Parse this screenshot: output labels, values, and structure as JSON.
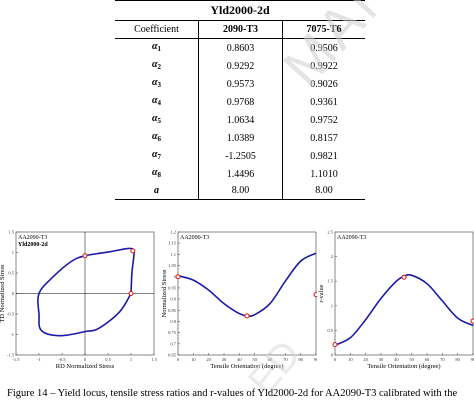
{
  "table": {
    "title": "Yld2000-2d",
    "header": [
      "Coefficient",
      "2090-T3",
      "7075-T6"
    ],
    "rows": [
      {
        "sym": "α",
        "sub": "1",
        "a": "0.8603",
        "b": "0.9506"
      },
      {
        "sym": "α",
        "sub": "2",
        "a": "0.9292",
        "b": "0.9922"
      },
      {
        "sym": "α",
        "sub": "3",
        "a": "0.9573",
        "b": "0.9026"
      },
      {
        "sym": "α",
        "sub": "4",
        "a": "0.9768",
        "b": "0.9361"
      },
      {
        "sym": "α",
        "sub": "5",
        "a": "1.0634",
        "b": "0.9752"
      },
      {
        "sym": "α",
        "sub": "6",
        "a": "1.0389",
        "b": "0.8157"
      },
      {
        "sym": "α",
        "sub": "7",
        "a": "-1.2505",
        "b": "0.9821"
      },
      {
        "sym": "α",
        "sub": "8",
        "a": "1.4496",
        "b": "1.1010"
      },
      {
        "sym": "a",
        "sub": "",
        "a": "8.00",
        "b": "8.00"
      }
    ]
  },
  "watermark": "MANUSCRIPT",
  "watermark2": "ED",
  "caption": "Figure 14 – Yield locus, tensile stress ratios and r-values of Yld2000-2d for AA2090-T3 calibrated with the",
  "chart_data": [
    {
      "type": "line",
      "title": "",
      "legend": [
        "AA2090-T3",
        "Yld2000-2d"
      ],
      "xlabel": "RD Normalized Stress",
      "ylabel": "TD Normalized Stress",
      "xlim": [
        -1.5,
        1.5
      ],
      "ylim": [
        -1.5,
        1.5
      ],
      "xticks": [
        "-1.5",
        "-1",
        "-0.5",
        "0",
        "0.5",
        "1",
        "1.5"
      ],
      "yticks": [
        "-1.5",
        "-1",
        "-0.5",
        "0",
        "0.5",
        "1",
        "1.5"
      ],
      "experimental_points": [
        {
          "x": 0,
          "y": 0.92
        },
        {
          "x": 1.04,
          "y": 1.04
        },
        {
          "x": 1.0,
          "y": 0.0
        }
      ],
      "series": [
        {
          "name": "Yld2000-2d",
          "shape": "closed yield locus",
          "x": [
            1.0,
            1.02,
            1.06,
            1.06,
            0.95,
            0.55,
            0.0,
            -0.3,
            -0.7,
            -1.0,
            -1.0,
            -0.95,
            -0.55,
            0.0,
            0.3,
            0.75,
            1.0
          ],
          "y": [
            0.0,
            0.5,
            0.9,
            1.05,
            1.1,
            1.02,
            0.92,
            0.78,
            0.4,
            0.0,
            -0.5,
            -0.9,
            -1.03,
            -0.93,
            -0.85,
            -0.45,
            0.0
          ]
        }
      ]
    },
    {
      "type": "line",
      "title": "",
      "legend": [
        "AA2090-T3"
      ],
      "xlabel": "Tensile Orientation (degree)",
      "ylabel": "Normalized Stress",
      "xlim": [
        0,
        90
      ],
      "ylim": [
        0.65,
        1.2
      ],
      "xticks": [
        "0",
        "10",
        "20",
        "30",
        "40",
        "50",
        "60",
        "70",
        "80",
        "90"
      ],
      "yticks": [
        "0.65",
        "0.7",
        "0.75",
        "0.8",
        "0.85",
        "0.9",
        "0.95",
        "1",
        "1.05",
        "1.1",
        "1.15",
        "1.2"
      ],
      "experimental_points": [
        {
          "x": 0,
          "y": 1.0
        },
        {
          "x": 45,
          "y": 0.825
        },
        {
          "x": 90,
          "y": 0.92
        }
      ],
      "series": [
        {
          "name": "Yld2000-2d",
          "x": [
            0,
            10,
            20,
            30,
            40,
            45,
            50,
            60,
            70,
            80,
            90
          ],
          "y": [
            1.005,
            0.985,
            0.94,
            0.88,
            0.835,
            0.825,
            0.83,
            0.88,
            0.98,
            1.07,
            1.105
          ]
        }
      ]
    },
    {
      "type": "line",
      "title": "",
      "legend": [
        "AA2090-T3"
      ],
      "xlabel": "Tensile Orientation (degree)",
      "ylabel": "r-value",
      "xlim": [
        0,
        90
      ],
      "ylim": [
        0,
        2.5
      ],
      "xticks": [
        "0",
        "10",
        "20",
        "30",
        "40",
        "50",
        "60",
        "70",
        "80",
        "90"
      ],
      "yticks": [
        "0",
        "0.5",
        "1",
        "1.5",
        "2",
        "2.5"
      ],
      "experimental_points": [
        {
          "x": 0,
          "y": 0.21
        },
        {
          "x": 45,
          "y": 1.58
        },
        {
          "x": 90,
          "y": 0.69
        }
      ],
      "series": [
        {
          "name": "Yld2000-2d",
          "x": [
            0,
            10,
            20,
            30,
            40,
            45,
            50,
            60,
            70,
            80,
            90
          ],
          "y": [
            0.2,
            0.35,
            0.72,
            1.15,
            1.5,
            1.6,
            1.62,
            1.45,
            1.1,
            0.75,
            0.6
          ]
        }
      ]
    }
  ]
}
